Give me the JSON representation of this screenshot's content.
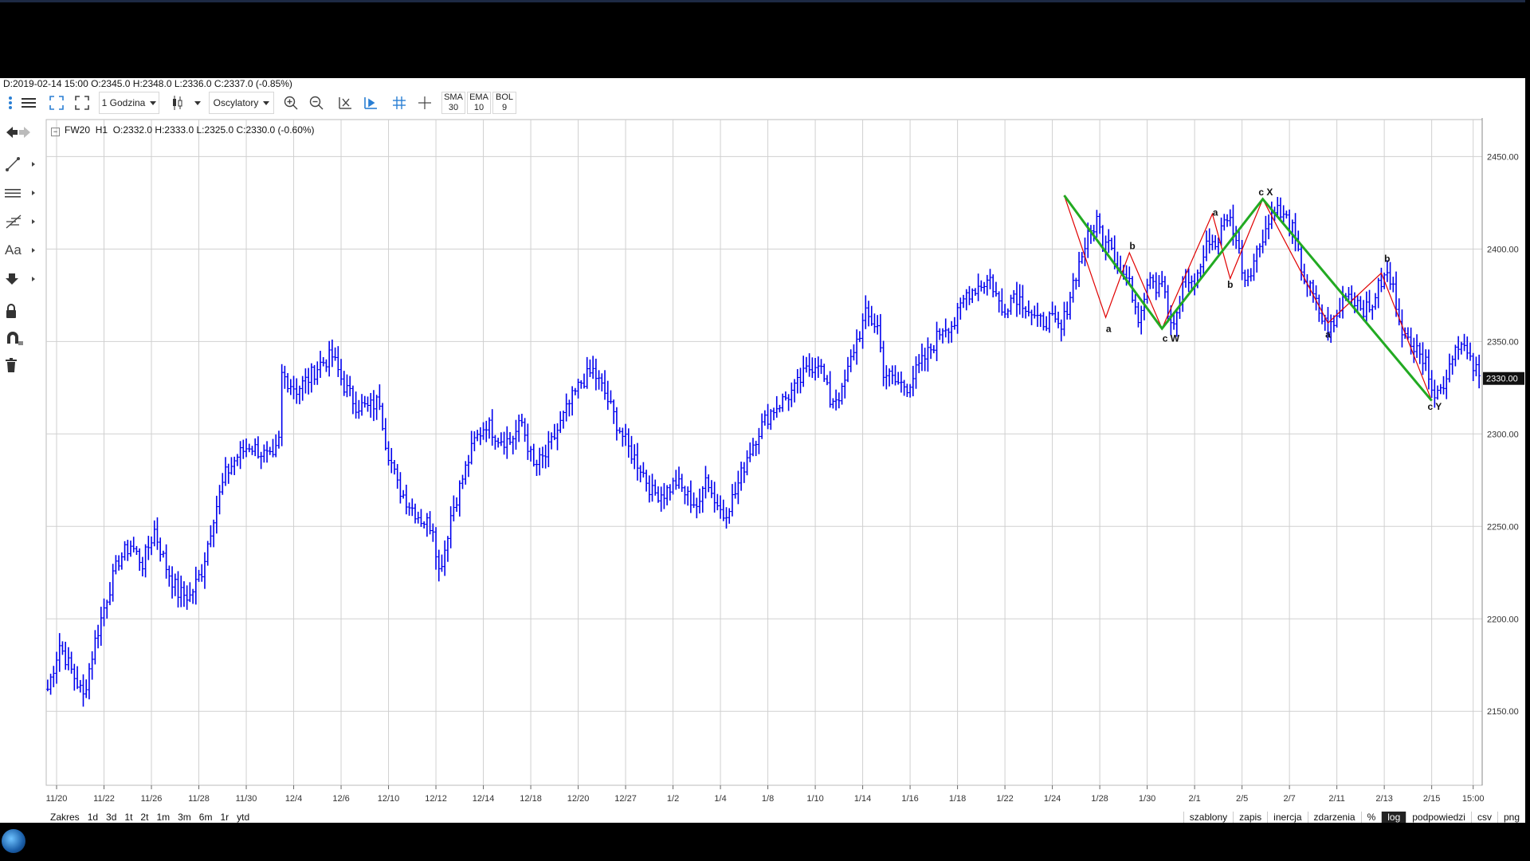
{
  "header_ohlc": "D:2019-02-14 15:00  O:2345.0  H:2348.0  L:2336.0  C:2337.0  (-0.85%)",
  "toolbar": {
    "interval_label": "1 Godzina",
    "oscillators_label": "Oscylatory",
    "indicators": [
      {
        "name": "SMA",
        "value": "30"
      },
      {
        "name": "EMA",
        "value": "10"
      },
      {
        "name": "BOL",
        "value": "9"
      }
    ]
  },
  "left_tools": {
    "text_tool_label": "Aa",
    "icons": [
      "back-arrow-icon",
      "line-tool-icon",
      "horizontal-lines-icon",
      "fibonacci-tool-icon",
      "text-tool-icon",
      "arrow-down-icon",
      "lock-icon",
      "magnet-icon",
      "trash-icon"
    ]
  },
  "chart_header": {
    "symbol": "FW20",
    "interval": "H1",
    "ohlc": "O:2332.0  H:2333.0  L:2325.0  C:2330.0  (-0.60%)"
  },
  "range_bar": [
    "Zakres",
    "1d",
    "3d",
    "1t",
    "2t",
    "1m",
    "3m",
    "6m",
    "1r",
    "ytd"
  ],
  "options_bar": [
    {
      "label": "szablony",
      "active": false
    },
    {
      "label": "zapis",
      "active": false
    },
    {
      "label": "inercja",
      "active": false
    },
    {
      "label": "zdarzenia",
      "active": false
    },
    {
      "label": "%",
      "active": false
    },
    {
      "label": "log",
      "active": true
    },
    {
      "label": "podpowiedzi",
      "active": false
    },
    {
      "label": "csv",
      "active": false
    },
    {
      "label": "png",
      "active": false
    }
  ],
  "colors": {
    "candles": "#0000ee",
    "grid": "#d0d0d0",
    "wave_red": "#e00000",
    "wave_green": "#22aa22",
    "last_price_bg": "#111111"
  },
  "chart_data": {
    "type": "candlestick-hl",
    "symbol": "FW20",
    "interval": "H1",
    "y_axis": {
      "ticks": [
        2150,
        2200,
        2250,
        2300,
        2350,
        2400,
        2450
      ],
      "tick_labels": [
        "2150.00",
        "2200.00",
        "2250.00",
        "2300.00",
        "2350.00",
        "2400.00",
        "2450.00"
      ],
      "range": [
        2110,
        2470
      ],
      "last_price": 2330,
      "last_price_label": "2330.00"
    },
    "x_axis": {
      "tick_labels": [
        "11/20",
        "11/22",
        "11/26",
        "11/28",
        "11/30",
        "12/4",
        "12/6",
        "12/10",
        "12/12",
        "12/14",
        "12/18",
        "12/20",
        "12/27",
        "1/2",
        "1/4",
        "1/8",
        "1/10",
        "1/14",
        "1/16",
        "1/18",
        "1/22",
        "1/24",
        "1/28",
        "1/30",
        "2/1",
        "2/5",
        "2/7",
        "2/11",
        "2/13",
        "2/15",
        "15:00"
      ],
      "tick_index": [
        3,
        19,
        35,
        51,
        67,
        83,
        99,
        115,
        131,
        147,
        163,
        179,
        195,
        211,
        227,
        243,
        259,
        275,
        291,
        307,
        323,
        339,
        355,
        371,
        387,
        403,
        419,
        435,
        451,
        467,
        481
      ],
      "bar_count": 484
    },
    "anchors": [
      [
        0,
        2162
      ],
      [
        4,
        2186
      ],
      [
        8,
        2172
      ],
      [
        12,
        2158
      ],
      [
        16,
        2188
      ],
      [
        20,
        2212
      ],
      [
        24,
        2232
      ],
      [
        28,
        2240
      ],
      [
        32,
        2230
      ],
      [
        36,
        2248
      ],
      [
        40,
        2228
      ],
      [
        44,
        2214
      ],
      [
        48,
        2212
      ],
      [
        52,
        2226
      ],
      [
        56,
        2256
      ],
      [
        60,
        2278
      ],
      [
        64,
        2288
      ],
      [
        68,
        2294
      ],
      [
        72,
        2290
      ],
      [
        76,
        2285
      ],
      [
        78,
        2296
      ],
      [
        79,
        2332
      ],
      [
        84,
        2324
      ],
      [
        88,
        2330
      ],
      [
        92,
        2338
      ],
      [
        96,
        2342
      ],
      [
        100,
        2326
      ],
      [
        104,
        2316
      ],
      [
        108,
        2314
      ],
      [
        112,
        2318
      ],
      [
        114,
        2296
      ],
      [
        118,
        2272
      ],
      [
        122,
        2262
      ],
      [
        126,
        2254
      ],
      [
        130,
        2250
      ],
      [
        132,
        2226
      ],
      [
        134,
        2238
      ],
      [
        136,
        2256
      ],
      [
        140,
        2276
      ],
      [
        144,
        2296
      ],
      [
        148,
        2306
      ],
      [
        152,
        2298
      ],
      [
        156,
        2296
      ],
      [
        160,
        2306
      ],
      [
        164,
        2282
      ],
      [
        168,
        2288
      ],
      [
        172,
        2302
      ],
      [
        176,
        2316
      ],
      [
        180,
        2328
      ],
      [
        184,
        2334
      ],
      [
        188,
        2322
      ],
      [
        192,
        2306
      ],
      [
        196,
        2292
      ],
      [
        200,
        2282
      ],
      [
        204,
        2268
      ],
      [
        208,
        2268
      ],
      [
        212,
        2274
      ],
      [
        216,
        2266
      ],
      [
        220,
        2260
      ],
      [
        222,
        2280
      ],
      [
        224,
        2268
      ],
      [
        228,
        2256
      ],
      [
        232,
        2268
      ],
      [
        236,
        2288
      ],
      [
        240,
        2302
      ],
      [
        244,
        2312
      ],
      [
        248,
        2318
      ],
      [
        252,
        2324
      ],
      [
        256,
        2334
      ],
      [
        260,
        2340
      ],
      [
        264,
        2318
      ],
      [
        268,
        2322
      ],
      [
        272,
        2346
      ],
      [
        276,
        2364
      ],
      [
        280,
        2358
      ],
      [
        282,
        2334
      ],
      [
        286,
        2328
      ],
      [
        290,
        2326
      ],
      [
        294,
        2336
      ],
      [
        298,
        2346
      ],
      [
        302,
        2358
      ],
      [
        306,
        2360
      ],
      [
        310,
        2376
      ],
      [
        314,
        2380
      ],
      [
        318,
        2384
      ],
      [
        322,
        2366
      ],
      [
        326,
        2376
      ],
      [
        330,
        2370
      ],
      [
        334,
        2360
      ],
      [
        338,
        2362
      ],
      [
        342,
        2356
      ],
      [
        346,
        2382
      ],
      [
        350,
        2402
      ],
      [
        354,
        2416
      ],
      [
        356,
        2404
      ],
      [
        358,
        2408
      ],
      [
        360,
        2396
      ],
      [
        362,
        2388
      ],
      [
        364,
        2384
      ],
      [
        366,
        2376
      ],
      [
        368,
        2364
      ],
      [
        370,
        2376
      ],
      [
        372,
        2388
      ],
      [
        374,
        2380
      ],
      [
        376,
        2384
      ],
      [
        378,
        2364
      ],
      [
        380,
        2356
      ],
      [
        382,
        2372
      ],
      [
        384,
        2388
      ],
      [
        386,
        2380
      ],
      [
        388,
        2386
      ],
      [
        390,
        2396
      ],
      [
        392,
        2406
      ],
      [
        394,
        2402
      ],
      [
        396,
        2410
      ],
      [
        398,
        2418
      ],
      [
        400,
        2412
      ],
      [
        402,
        2398
      ],
      [
        404,
        2384
      ],
      [
        406,
        2390
      ],
      [
        408,
        2398
      ],
      [
        410,
        2408
      ],
      [
        412,
        2414
      ],
      [
        414,
        2424
      ],
      [
        416,
        2418
      ],
      [
        418,
        2416
      ],
      [
        420,
        2410
      ],
      [
        422,
        2396
      ],
      [
        424,
        2384
      ],
      [
        426,
        2378
      ],
      [
        428,
        2370
      ],
      [
        430,
        2362
      ],
      [
        432,
        2358
      ],
      [
        434,
        2358
      ],
      [
        436,
        2368
      ],
      [
        438,
        2378
      ],
      [
        440,
        2374
      ],
      [
        442,
        2372
      ],
      [
        444,
        2368
      ],
      [
        446,
        2366
      ],
      [
        448,
        2376
      ],
      [
        450,
        2382
      ],
      [
        452,
        2386
      ],
      [
        454,
        2378
      ],
      [
        456,
        2364
      ],
      [
        458,
        2352
      ],
      [
        460,
        2346
      ],
      [
        462,
        2352
      ],
      [
        464,
        2340
      ],
      [
        466,
        2334
      ],
      [
        468,
        2322
      ],
      [
        470,
        2324
      ],
      [
        472,
        2332
      ],
      [
        474,
        2344
      ],
      [
        476,
        2350
      ],
      [
        478,
        2346
      ],
      [
        480,
        2338
      ],
      [
        482,
        2334
      ],
      [
        483,
        2330
      ]
    ],
    "annotations": [
      {
        "text": "a",
        "x": 358,
        "y": 2355
      },
      {
        "text": "b",
        "x": 366,
        "y": 2400
      },
      {
        "text": "c W",
        "x": 379,
        "y": 2350
      },
      {
        "text": "a",
        "x": 394,
        "y": 2418
      },
      {
        "text": "b",
        "x": 399,
        "y": 2379
      },
      {
        "text": "c X",
        "x": 411,
        "y": 2429
      },
      {
        "text": "a",
        "x": 432,
        "y": 2352
      },
      {
        "text": "b",
        "x": 452,
        "y": 2393
      },
      {
        "text": "c Y",
        "x": 468,
        "y": 2313
      }
    ],
    "wave_red": [
      [
        343,
        2429
      ],
      [
        357,
        2363
      ],
      [
        365,
        2398
      ],
      [
        376,
        2357
      ],
      [
        393,
        2419
      ],
      [
        399,
        2384
      ],
      [
        410,
        2427
      ],
      [
        432,
        2360
      ],
      [
        450,
        2387
      ],
      [
        467,
        2318
      ]
    ],
    "wave_green": [
      [
        343,
        2429
      ],
      [
        376,
        2357
      ],
      [
        410,
        2427
      ],
      [
        467,
        2318
      ]
    ]
  }
}
